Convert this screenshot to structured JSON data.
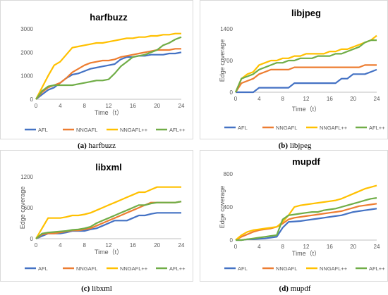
{
  "colors": {
    "AFL": "#4472c4",
    "NNGAFL": "#ed7d31",
    "NNGAFL++": "#ffc000",
    "AFL++": "#70ad47",
    "axis": "#bfbfbf",
    "text": "#595959"
  },
  "captions": [
    {
      "letter": "(a)",
      "text": " harfbuzz"
    },
    {
      "letter": "(b)",
      "text": " libjpeg"
    },
    {
      "letter": "(c)",
      "text": " libxml"
    },
    {
      "letter": "(d)",
      "text": " mupdf"
    }
  ],
  "chart_data": [
    {
      "type": "line",
      "title": "harfbuzz",
      "xlabel": "Time（t）",
      "ylabel": "",
      "xlim": [
        0,
        24
      ],
      "ylim": [
        0,
        3000
      ],
      "xticks": [
        0,
        4,
        8,
        12,
        16,
        20,
        24
      ],
      "yticks": [
        0,
        1000,
        2000,
        3000
      ],
      "legend": "bottom",
      "x": [
        0,
        1,
        2,
        3,
        4,
        5,
        6,
        7,
        8,
        9,
        10,
        11,
        12,
        13,
        14,
        15,
        16,
        17,
        18,
        19,
        20,
        21,
        22,
        23,
        24
      ],
      "series": [
        {
          "name": "AFL",
          "values": [
            0,
            200,
            400,
            500,
            700,
            900,
            1050,
            1100,
            1200,
            1300,
            1350,
            1400,
            1450,
            1500,
            1700,
            1800,
            1800,
            1850,
            1850,
            1900,
            1900,
            1900,
            1950,
            1950,
            2000
          ]
        },
        {
          "name": "NNGAFL",
          "values": [
            0,
            300,
            500,
            600,
            700,
            900,
            1150,
            1300,
            1450,
            1550,
            1600,
            1650,
            1650,
            1700,
            1800,
            1850,
            1900,
            1950,
            2000,
            2050,
            2100,
            2100,
            2100,
            2150,
            2150
          ]
        },
        {
          "name": "NNGAFL++",
          "values": [
            0,
            500,
            1000,
            1450,
            1600,
            1900,
            2200,
            2250,
            2300,
            2350,
            2400,
            2400,
            2450,
            2500,
            2550,
            2600,
            2600,
            2650,
            2650,
            2700,
            2700,
            2750,
            2750,
            2800,
            2800
          ]
        },
        {
          "name": "AFL++",
          "values": [
            0,
            350,
            550,
            600,
            600,
            600,
            600,
            650,
            700,
            750,
            800,
            800,
            850,
            1100,
            1400,
            1600,
            1800,
            1850,
            1900,
            2000,
            2100,
            2300,
            2400,
            2550,
            2650
          ]
        }
      ]
    },
    {
      "type": "line",
      "title": "libjpeg",
      "xlabel": "Time（t）",
      "ylabel": "Edge coverage",
      "xlim": [
        0,
        24
      ],
      "ylim": [
        0,
        1400
      ],
      "xticks": [
        0,
        4,
        8,
        12,
        16,
        20,
        24
      ],
      "yticks": [
        0,
        700,
        1400
      ],
      "legend": "bottom",
      "x": [
        0,
        1,
        2,
        3,
        4,
        5,
        6,
        7,
        8,
        9,
        10,
        11,
        12,
        13,
        14,
        15,
        16,
        17,
        18,
        19,
        20,
        21,
        22,
        23,
        24
      ],
      "series": [
        {
          "name": "AFL",
          "values": [
            0,
            0,
            0,
            0,
            100,
            100,
            100,
            100,
            100,
            100,
            200,
            200,
            200,
            200,
            200,
            200,
            200,
            200,
            300,
            300,
            400,
            400,
            400,
            450,
            500
          ]
        },
        {
          "name": "NNGAFL",
          "values": [
            0,
            200,
            250,
            300,
            400,
            450,
            500,
            500,
            500,
            500,
            550,
            550,
            550,
            550,
            550,
            550,
            550,
            550,
            550,
            550,
            550,
            550,
            600,
            600,
            600
          ]
        },
        {
          "name": "NNGAFL++",
          "values": [
            0,
            300,
            400,
            450,
            600,
            650,
            700,
            700,
            750,
            750,
            800,
            800,
            850,
            850,
            850,
            850,
            900,
            900,
            950,
            950,
            1000,
            1050,
            1100,
            1150,
            1250
          ]
        },
        {
          "name": "AFL++",
          "values": [
            0,
            300,
            350,
            400,
            500,
            550,
            600,
            650,
            650,
            700,
            700,
            750,
            750,
            750,
            800,
            800,
            800,
            850,
            850,
            900,
            950,
            1000,
            1100,
            1150,
            1150
          ]
        }
      ]
    },
    {
      "type": "line",
      "title": "libxml",
      "xlabel": "Time（t）",
      "ylabel": "Edge coverage",
      "xlim": [
        0,
        24
      ],
      "ylim": [
        0,
        1200
      ],
      "xticks": [
        0,
        4,
        8,
        12,
        16,
        20,
        24
      ],
      "yticks": [
        0,
        600,
        1200
      ],
      "legend": "bottom",
      "x": [
        0,
        1,
        2,
        3,
        4,
        5,
        6,
        7,
        8,
        9,
        10,
        11,
        12,
        13,
        14,
        15,
        16,
        17,
        18,
        19,
        20,
        21,
        22,
        23,
        24
      ],
      "series": [
        {
          "name": "AFL",
          "values": [
            0,
            50,
            100,
            100,
            100,
            120,
            150,
            150,
            150,
            180,
            200,
            250,
            300,
            350,
            350,
            350,
            400,
            450,
            450,
            480,
            500,
            500,
            500,
            500,
            500
          ]
        },
        {
          "name": "NNGAFL",
          "values": [
            0,
            80,
            100,
            100,
            120,
            140,
            160,
            160,
            180,
            200,
            250,
            300,
            350,
            400,
            450,
            500,
            550,
            600,
            650,
            700,
            700,
            700,
            700,
            700,
            720
          ]
        },
        {
          "name": "NNGAFL++",
          "values": [
            0,
            200,
            400,
            400,
            400,
            420,
            450,
            450,
            470,
            500,
            550,
            600,
            650,
            700,
            750,
            800,
            850,
            900,
            900,
            950,
            1000,
            1000,
            1000,
            1000,
            1000
          ]
        },
        {
          "name": "AFL++",
          "values": [
            0,
            100,
            120,
            130,
            140,
            150,
            170,
            180,
            200,
            230,
            300,
            350,
            400,
            450,
            500,
            550,
            600,
            650,
            650,
            680,
            700,
            700,
            700,
            700,
            720
          ]
        }
      ]
    },
    {
      "type": "line",
      "title": "mupdf",
      "xlabel": "Time（t）",
      "ylabel": "Edge coverage",
      "xlim": [
        0,
        24
      ],
      "ylim": [
        0,
        800
      ],
      "xticks": [
        0,
        4,
        8,
        12,
        16,
        20,
        24
      ],
      "yticks": [
        0,
        400,
        800
      ],
      "legend": "bottom",
      "x": [
        0,
        1,
        2,
        3,
        4,
        5,
        6,
        7,
        8,
        9,
        10,
        11,
        12,
        13,
        14,
        15,
        16,
        17,
        18,
        19,
        20,
        21,
        22,
        23,
        24
      ],
      "series": [
        {
          "name": "AFL",
          "values": [
            0,
            0,
            10,
            10,
            15,
            20,
            30,
            40,
            150,
            220,
            225,
            230,
            240,
            250,
            260,
            270,
            280,
            290,
            300,
            320,
            340,
            350,
            360,
            370,
            380
          ]
        },
        {
          "name": "NNGAFL",
          "values": [
            0,
            40,
            70,
            100,
            120,
            130,
            140,
            160,
            200,
            250,
            270,
            280,
            290,
            300,
            310,
            320,
            330,
            340,
            350,
            370,
            390,
            410,
            420,
            430,
            440
          ]
        },
        {
          "name": "NNGAFL++",
          "values": [
            0,
            60,
            100,
            120,
            130,
            140,
            150,
            160,
            220,
            300,
            400,
            420,
            430,
            440,
            450,
            460,
            470,
            480,
            500,
            530,
            560,
            590,
            620,
            640,
            660
          ]
        },
        {
          "name": "AFL++",
          "values": [
            0,
            0,
            10,
            20,
            30,
            40,
            50,
            60,
            250,
            300,
            310,
            320,
            330,
            340,
            340,
            360,
            370,
            380,
            400,
            420,
            440,
            460,
            480,
            500,
            510
          ]
        }
      ]
    }
  ]
}
